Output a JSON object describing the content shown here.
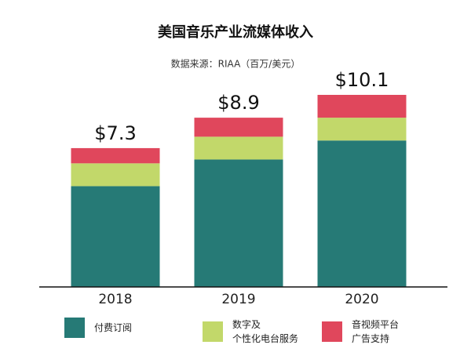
{
  "chart_data": {
    "type": "stacked-bar",
    "title": "美国音乐产业流媒体收入",
    "subtitle": "数据来源：RIAA（百万/美元）",
    "categories": [
      "2018",
      "2019",
      "2020"
    ],
    "series": [
      {
        "name": "付费订阅",
        "color": "#267a76",
        "values": [
          5.3,
          6.7,
          7.7
        ]
      },
      {
        "name": "数字及\n个性化电台服务",
        "color": "#c2d86a",
        "values": [
          1.2,
          1.2,
          1.2
        ]
      },
      {
        "name": "音视频平台\n广告支持",
        "color": "#e0475c",
        "values": [
          0.8,
          1.0,
          1.2
        ]
      }
    ],
    "totals": [
      7.3,
      8.9,
      10.1
    ],
    "total_labels": [
      "$7.3",
      "$8.9",
      "$10.1"
    ]
  }
}
